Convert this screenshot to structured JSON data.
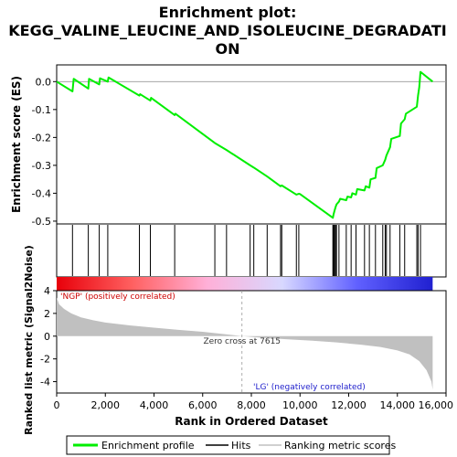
{
  "chart_data": {
    "type": "line",
    "title_lines": [
      "Enrichment plot:",
      "KEGG_VALINE_LEUCINE_AND_ISOLEUCINE_DEGRADATI",
      "ON"
    ],
    "es_panel": {
      "ylabel": "Enrichment score (ES)",
      "ylim": [
        -0.51,
        0.06
      ],
      "yticks": [
        0.0,
        -0.1,
        -0.2,
        -0.3,
        -0.4,
        -0.5
      ],
      "ytick_labels": [
        "0.0",
        "-0.1",
        "-0.2",
        "-0.3",
        "-0.4",
        "-0.5"
      ],
      "line_color": "#00ee00",
      "profile": [
        [
          0,
          0.0
        ],
        [
          650,
          -0.035
        ],
        [
          700,
          0.01
        ],
        [
          1300,
          -0.025
        ],
        [
          1330,
          0.01
        ],
        [
          1750,
          -0.01
        ],
        [
          1780,
          0.012
        ],
        [
          2100,
          0.0
        ],
        [
          2130,
          0.015
        ],
        [
          3400,
          -0.05
        ],
        [
          3430,
          -0.045
        ],
        [
          3850,
          -0.068
        ],
        [
          3880,
          -0.058
        ],
        [
          4850,
          -0.12
        ],
        [
          4880,
          -0.115
        ],
        [
          6500,
          -0.22
        ],
        [
          6980,
          -0.245
        ],
        [
          7950,
          -0.3
        ],
        [
          8100,
          -0.308
        ],
        [
          8650,
          -0.34
        ],
        [
          9200,
          -0.375
        ],
        [
          9250,
          -0.372
        ],
        [
          9850,
          -0.405
        ],
        [
          9950,
          -0.402
        ],
        [
          10000,
          -0.403
        ],
        [
          11350,
          -0.488
        ],
        [
          11380,
          -0.475
        ],
        [
          11420,
          -0.462
        ],
        [
          11460,
          -0.45
        ],
        [
          11500,
          -0.44
        ],
        [
          11600,
          -0.43
        ],
        [
          11650,
          -0.42
        ],
        [
          11900,
          -0.425
        ],
        [
          11950,
          -0.412
        ],
        [
          12100,
          -0.415
        ],
        [
          12150,
          -0.4
        ],
        [
          12300,
          -0.405
        ],
        [
          12350,
          -0.385
        ],
        [
          12650,
          -0.39
        ],
        [
          12700,
          -0.375
        ],
        [
          12850,
          -0.38
        ],
        [
          12900,
          -0.35
        ],
        [
          13100,
          -0.345
        ],
        [
          13150,
          -0.31
        ],
        [
          13400,
          -0.3
        ],
        [
          13500,
          -0.28
        ],
        [
          13550,
          -0.265
        ],
        [
          13700,
          -0.235
        ],
        [
          13750,
          -0.205
        ],
        [
          14100,
          -0.195
        ],
        [
          14150,
          -0.15
        ],
        [
          14300,
          -0.135
        ],
        [
          14350,
          -0.115
        ],
        [
          14800,
          -0.09
        ],
        [
          14850,
          -0.05
        ],
        [
          14900,
          -0.02
        ],
        [
          14950,
          0.035
        ],
        [
          15450,
          0.0
        ]
      ]
    },
    "hits_panel": {
      "positions": [
        650,
        1300,
        1750,
        2100,
        3400,
        3850,
        4850,
        6500,
        6980,
        7950,
        8100,
        8650,
        9200,
        9250,
        9850,
        9950,
        11350,
        11380,
        11420,
        11460,
        11500,
        11600,
        11900,
        12100,
        12300,
        12650,
        12850,
        13100,
        13400,
        13500,
        13550,
        13700,
        14100,
        14300,
        14800,
        14850,
        14950
      ]
    },
    "metric_panel": {
      "ylabel": "Ranked list metric (Signal2Noise)",
      "ylim": [
        -5,
        4
      ],
      "yticks": [
        4,
        2,
        0,
        -2,
        -4
      ],
      "ytick_labels": [
        "4",
        "2",
        "0",
        "-2",
        "-4"
      ],
      "zero_cross_label": "Zero cross at 7615",
      "zero_cross": 7615,
      "pos_label": "'NGP' (positively correlated)",
      "neg_label": "'LG' (negatively correlated)",
      "fill_color": "#c0c0c0",
      "metric_curve": [
        [
          0,
          3.4
        ],
        [
          100,
          2.8
        ],
        [
          300,
          2.4
        ],
        [
          600,
          2.0
        ],
        [
          1000,
          1.65
        ],
        [
          1500,
          1.4
        ],
        [
          2000,
          1.2
        ],
        [
          3000,
          0.95
        ],
        [
          4000,
          0.75
        ],
        [
          5000,
          0.55
        ],
        [
          6000,
          0.38
        ],
        [
          7000,
          0.15
        ],
        [
          7615,
          0.0
        ],
        [
          8500,
          -0.15
        ],
        [
          9500,
          -0.28
        ],
        [
          10500,
          -0.4
        ],
        [
          11500,
          -0.55
        ],
        [
          12500,
          -0.75
        ],
        [
          13300,
          -0.95
        ],
        [
          14000,
          -1.25
        ],
        [
          14500,
          -1.6
        ],
        [
          14900,
          -2.2
        ],
        [
          15200,
          -3.0
        ],
        [
          15400,
          -4.0
        ],
        [
          15450,
          -4.7
        ]
      ]
    },
    "xaxis": {
      "xlabel": "Rank in Ordered Dataset",
      "xlim": [
        0,
        16000
      ],
      "xticks": [
        0,
        2000,
        4000,
        6000,
        8000,
        10000,
        12000,
        14000,
        16000
      ],
      "xtick_labels": [
        "0",
        "2,000",
        "4,000",
        "6,000",
        "8,000",
        "10,000",
        "12,000",
        "14,000",
        "16,000"
      ],
      "n_genes": 15450
    },
    "colorbar": {
      "stops": [
        "#e8000a",
        "#ff6060",
        "#ffb0d8",
        "#d8d8ff",
        "#6060ff",
        "#2020d0"
      ]
    },
    "legend": {
      "items": [
        {
          "label": "Enrichment profile",
          "color": "#00ee00",
          "kind": "thick-line"
        },
        {
          "label": "Hits",
          "color": "#000000",
          "kind": "line"
        },
        {
          "label": "Ranking metric scores",
          "color": "#c0c0c0",
          "kind": "line"
        }
      ]
    }
  }
}
